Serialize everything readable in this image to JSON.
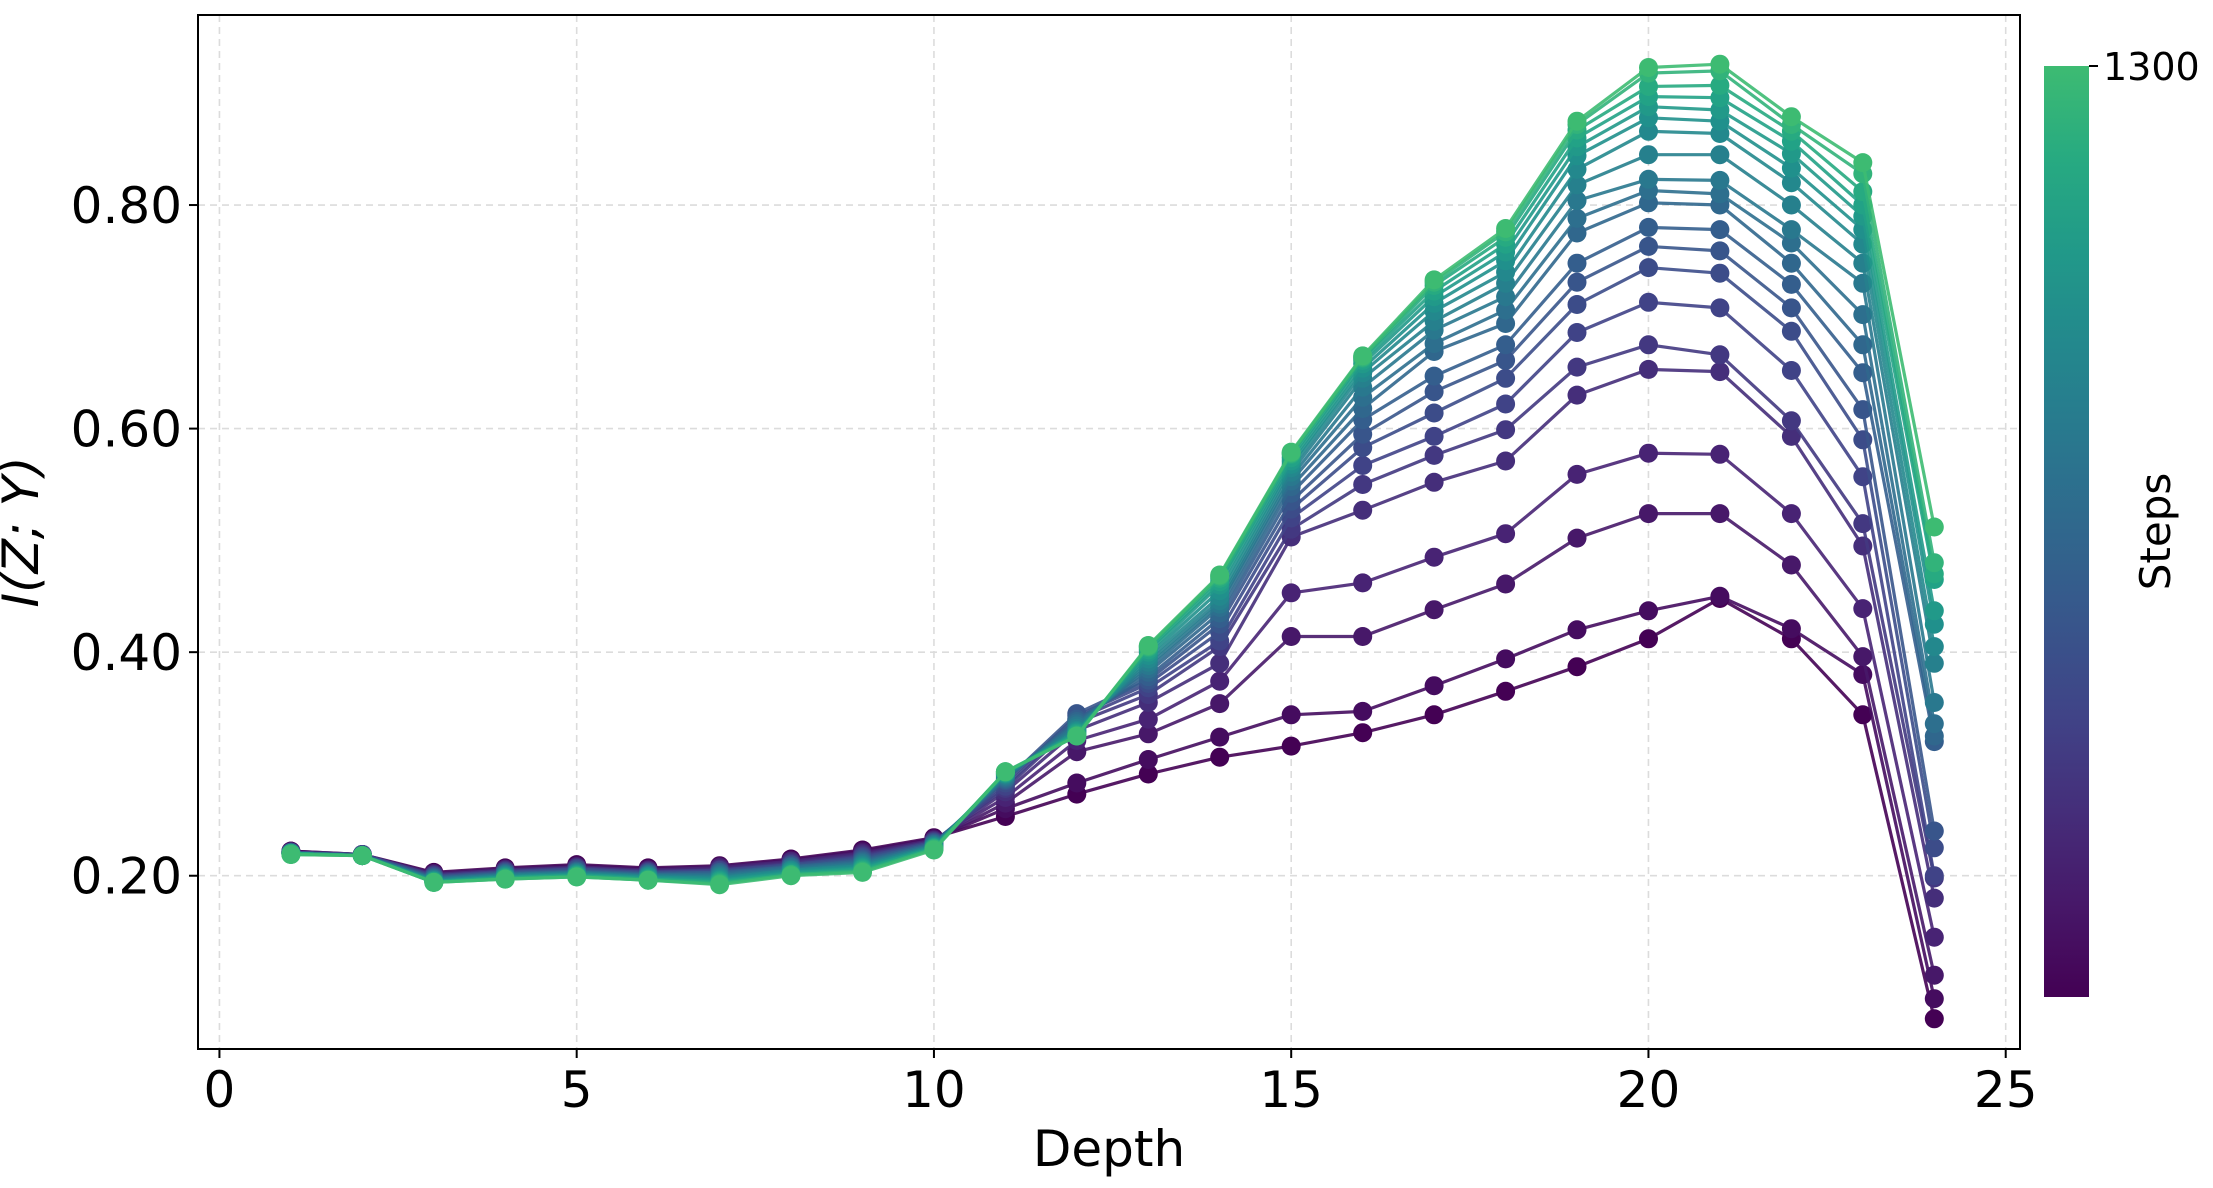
{
  "chart_data": {
    "type": "line",
    "title": "",
    "xlabel": "Depth",
    "ylabel": "I(Z; Y)",
    "xlim": [
      -0.3,
      25.2
    ],
    "ylim": [
      0.045,
      0.97
    ],
    "xticks": [
      0,
      5,
      10,
      15,
      20,
      25
    ],
    "xtick_labels": [
      "0",
      "5",
      "10",
      "15",
      "20",
      "25"
    ],
    "yticks": [
      0.2,
      0.4,
      0.6,
      0.8
    ],
    "ytick_labels": [
      "0.20",
      "0.40",
      "0.60",
      "0.80"
    ],
    "grid": true,
    "marker": "circle",
    "colorbar": {
      "label": "Steps",
      "ticks": [
        1300
      ],
      "tick_labels": [
        "1300"
      ],
      "colormap": "viridis",
      "color_low": "#440154",
      "color_high": "#3dbb72"
    },
    "x": [
      1,
      2,
      3,
      4,
      5,
      6,
      7,
      8,
      9,
      10,
      11,
      12,
      13,
      14,
      15,
      16,
      17,
      18,
      19,
      20,
      21,
      22,
      23,
      24
    ],
    "series": [
      {
        "name": "s1",
        "values": [
          0.222,
          0.219,
          0.203,
          0.207,
          0.21,
          0.207,
          0.209,
          0.215,
          0.223,
          0.234,
          0.253,
          0.273,
          0.291,
          0.306,
          0.316,
          0.328,
          0.344,
          0.365,
          0.387,
          0.412,
          0.448,
          0.412,
          0.344,
          0.072
        ]
      },
      {
        "name": "s2",
        "values": [
          0.222,
          0.219,
          0.202,
          0.206,
          0.209,
          0.206,
          0.208,
          0.214,
          0.222,
          0.233,
          0.26,
          0.283,
          0.304,
          0.324,
          0.344,
          0.347,
          0.37,
          0.394,
          0.42,
          0.437,
          0.45,
          0.421,
          0.38,
          0.09
        ]
      },
      {
        "name": "s3",
        "values": [
          0.221,
          0.219,
          0.202,
          0.206,
          0.208,
          0.205,
          0.208,
          0.213,
          0.221,
          0.232,
          0.265,
          0.311,
          0.327,
          0.354,
          0.414,
          0.414,
          0.438,
          0.461,
          0.502,
          0.524,
          0.524,
          0.478,
          0.396,
          0.111
        ]
      },
      {
        "name": "s4",
        "values": [
          0.221,
          0.219,
          0.201,
          0.205,
          0.208,
          0.205,
          0.207,
          0.213,
          0.22,
          0.232,
          0.27,
          0.321,
          0.34,
          0.374,
          0.453,
          0.462,
          0.485,
          0.506,
          0.559,
          0.578,
          0.577,
          0.524,
          0.439,
          0.145
        ]
      },
      {
        "name": "s5",
        "values": [
          0.221,
          0.219,
          0.201,
          0.205,
          0.207,
          0.204,
          0.206,
          0.212,
          0.219,
          0.231,
          0.275,
          0.33,
          0.355,
          0.39,
          0.503,
          0.527,
          0.552,
          0.571,
          0.63,
          0.653,
          0.651,
          0.593,
          0.495,
          0.18
        ]
      },
      {
        "name": "s6",
        "values": [
          0.221,
          0.219,
          0.2,
          0.204,
          0.207,
          0.204,
          0.205,
          0.211,
          0.218,
          0.231,
          0.278,
          0.337,
          0.362,
          0.405,
          0.51,
          0.55,
          0.576,
          0.599,
          0.655,
          0.675,
          0.666,
          0.607,
          0.515,
          0.198
        ]
      },
      {
        "name": "s7",
        "values": [
          0.221,
          0.219,
          0.2,
          0.204,
          0.206,
          0.203,
          0.205,
          0.21,
          0.217,
          0.23,
          0.28,
          0.34,
          0.368,
          0.41,
          0.52,
          0.567,
          0.593,
          0.622,
          0.686,
          0.713,
          0.708,
          0.652,
          0.557,
          0.2
        ]
      },
      {
        "name": "s8",
        "values": [
          0.221,
          0.219,
          0.199,
          0.203,
          0.206,
          0.203,
          0.204,
          0.21,
          0.216,
          0.23,
          0.283,
          0.343,
          0.372,
          0.418,
          0.528,
          0.583,
          0.614,
          0.645,
          0.711,
          0.744,
          0.739,
          0.687,
          0.59,
          0.225
        ]
      },
      {
        "name": "s9",
        "values": [
          0.221,
          0.218,
          0.199,
          0.203,
          0.205,
          0.202,
          0.203,
          0.209,
          0.215,
          0.229,
          0.285,
          0.345,
          0.375,
          0.425,
          0.535,
          0.595,
          0.633,
          0.661,
          0.731,
          0.763,
          0.759,
          0.708,
          0.617,
          0.24
        ]
      },
      {
        "name": "s10",
        "values": [
          0.22,
          0.218,
          0.198,
          0.202,
          0.204,
          0.202,
          0.203,
          0.208,
          0.214,
          0.229,
          0.286,
          0.34,
          0.378,
          0.43,
          0.542,
          0.608,
          0.647,
          0.675,
          0.748,
          0.78,
          0.778,
          0.729,
          0.65,
          0.32
        ]
      },
      {
        "name": "s11",
        "values": [
          0.22,
          0.218,
          0.198,
          0.202,
          0.204,
          0.201,
          0.202,
          0.208,
          0.213,
          0.228,
          0.287,
          0.338,
          0.382,
          0.435,
          0.548,
          0.618,
          0.669,
          0.694,
          0.775,
          0.802,
          0.8,
          0.748,
          0.675,
          0.325
        ]
      },
      {
        "name": "s12",
        "values": [
          0.22,
          0.218,
          0.197,
          0.201,
          0.203,
          0.201,
          0.201,
          0.207,
          0.212,
          0.228,
          0.288,
          0.336,
          0.385,
          0.44,
          0.553,
          0.628,
          0.676,
          0.706,
          0.788,
          0.813,
          0.81,
          0.766,
          0.702,
          0.336
        ]
      },
      {
        "name": "s13",
        "values": [
          0.22,
          0.218,
          0.197,
          0.201,
          0.203,
          0.2,
          0.2,
          0.206,
          0.211,
          0.227,
          0.289,
          0.334,
          0.388,
          0.443,
          0.557,
          0.637,
          0.688,
          0.718,
          0.804,
          0.823,
          0.822,
          0.778,
          0.73,
          0.355
        ]
      },
      {
        "name": "s14",
        "values": [
          0.22,
          0.218,
          0.196,
          0.2,
          0.202,
          0.2,
          0.199,
          0.205,
          0.21,
          0.227,
          0.29,
          0.332,
          0.391,
          0.446,
          0.561,
          0.645,
          0.696,
          0.73,
          0.818,
          0.845,
          0.845,
          0.8,
          0.748,
          0.39
        ]
      },
      {
        "name": "s15",
        "values": [
          0.22,
          0.218,
          0.196,
          0.2,
          0.202,
          0.199,
          0.198,
          0.205,
          0.209,
          0.226,
          0.291,
          0.33,
          0.394,
          0.45,
          0.565,
          0.65,
          0.705,
          0.74,
          0.832,
          0.866,
          0.864,
          0.82,
          0.765,
          0.405
        ]
      },
      {
        "name": "s16",
        "values": [
          0.22,
          0.218,
          0.195,
          0.199,
          0.201,
          0.199,
          0.197,
          0.204,
          0.208,
          0.226,
          0.291,
          0.329,
          0.397,
          0.455,
          0.568,
          0.654,
          0.712,
          0.75,
          0.844,
          0.878,
          0.875,
          0.833,
          0.778,
          0.425
        ]
      },
      {
        "name": "s17",
        "values": [
          0.22,
          0.218,
          0.195,
          0.199,
          0.201,
          0.198,
          0.196,
          0.203,
          0.207,
          0.225,
          0.292,
          0.328,
          0.4,
          0.46,
          0.571,
          0.658,
          0.718,
          0.758,
          0.852,
          0.888,
          0.885,
          0.846,
          0.79,
          0.437
        ]
      },
      {
        "name": "s18",
        "values": [
          0.22,
          0.218,
          0.195,
          0.198,
          0.2,
          0.197,
          0.195,
          0.202,
          0.206,
          0.225,
          0.292,
          0.327,
          0.402,
          0.463,
          0.574,
          0.661,
          0.723,
          0.765,
          0.86,
          0.897,
          0.896,
          0.857,
          0.8,
          0.465
        ]
      },
      {
        "name": "s19",
        "values": [
          0.22,
          0.218,
          0.194,
          0.198,
          0.2,
          0.197,
          0.194,
          0.201,
          0.205,
          0.224,
          0.293,
          0.326,
          0.404,
          0.466,
          0.577,
          0.663,
          0.728,
          0.771,
          0.867,
          0.906,
          0.907,
          0.866,
          0.812,
          0.47
        ]
      },
      {
        "name": "s20",
        "values": [
          0.219,
          0.218,
          0.194,
          0.197,
          0.199,
          0.196,
          0.193,
          0.201,
          0.204,
          0.224,
          0.293,
          0.325,
          0.405,
          0.468,
          0.578,
          0.664,
          0.731,
          0.776,
          0.872,
          0.918,
          0.92,
          0.872,
          0.828,
          0.48
        ]
      },
      {
        "name": "s21",
        "values": [
          0.219,
          0.218,
          0.194,
          0.197,
          0.199,
          0.196,
          0.192,
          0.2,
          0.203,
          0.223,
          0.293,
          0.325,
          0.406,
          0.469,
          0.579,
          0.665,
          0.733,
          0.779,
          0.875,
          0.923,
          0.926,
          0.879,
          0.838,
          0.512
        ]
      }
    ]
  }
}
